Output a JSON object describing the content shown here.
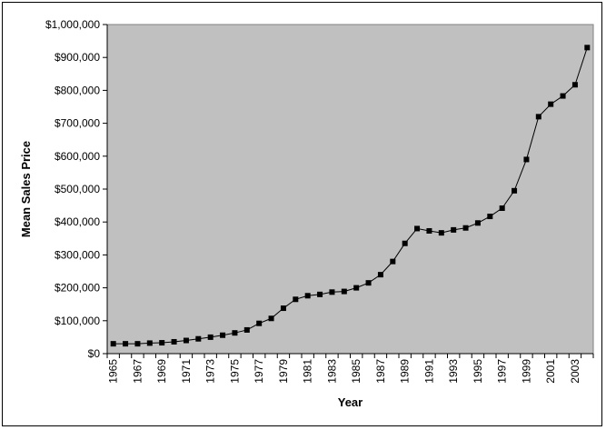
{
  "chart_data": {
    "type": "line",
    "title": "",
    "xlabel": "Year",
    "ylabel": "Mean Sales Price",
    "ylim": [
      0,
      1000000
    ],
    "yticks": [
      {
        "value": 0,
        "label": "$0"
      },
      {
        "value": 100000,
        "label": "$100,000"
      },
      {
        "value": 200000,
        "label": "$200,000"
      },
      {
        "value": 300000,
        "label": "$300,000"
      },
      {
        "value": 400000,
        "label": "$400,000"
      },
      {
        "value": 500000,
        "label": "$500,000"
      },
      {
        "value": 600000,
        "label": "$600,000"
      },
      {
        "value": 700000,
        "label": "$700,000"
      },
      {
        "value": 800000,
        "label": "$800,000"
      },
      {
        "value": 900000,
        "label": "$900,000"
      },
      {
        "value": 1000000,
        "label": "$1,000,000"
      }
    ],
    "xtick_labels": [
      "1965",
      "1967",
      "1969",
      "1971",
      "1973",
      "1975",
      "1977",
      "1979",
      "1981",
      "1983",
      "1985",
      "1987",
      "1989",
      "1991",
      "1993",
      "1995",
      "1997",
      "1999",
      "2001",
      "2003"
    ],
    "x": [
      1965,
      1966,
      1967,
      1968,
      1969,
      1970,
      1971,
      1972,
      1973,
      1974,
      1975,
      1976,
      1977,
      1978,
      1979,
      1980,
      1981,
      1982,
      1983,
      1984,
      1985,
      1986,
      1987,
      1988,
      1989,
      1990,
      1991,
      1992,
      1993,
      1994,
      1995,
      1996,
      1997,
      1998,
      1999,
      2000,
      2001,
      2002,
      2003,
      2004
    ],
    "series": [
      {
        "values": [
          30000,
          30000,
          30000,
          32000,
          33000,
          36000,
          40000,
          45000,
          50000,
          56000,
          63000,
          72000,
          92000,
          107000,
          138000,
          165000,
          176000,
          180000,
          187000,
          189000,
          200000,
          215000,
          240000,
          280000,
          335000,
          380000,
          373000,
          367000,
          376000,
          382000,
          397000,
          417000,
          442000,
          495000,
          590000,
          720000,
          758000,
          783000,
          817000,
          930000
        ]
      }
    ],
    "marker": "square",
    "grid": false,
    "legend": "none",
    "colors": {
      "plot_background": "#c0c0c0",
      "line": "#000000",
      "marker": "#000000"
    }
  }
}
